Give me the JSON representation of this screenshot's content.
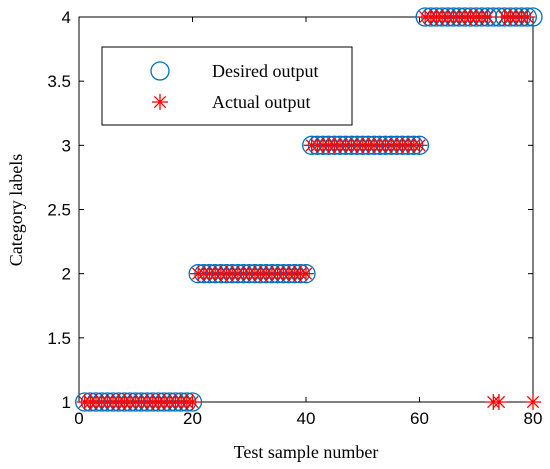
{
  "chart_data": {
    "type": "scatter",
    "title": "",
    "xlabel": "Test sample number",
    "ylabel": "Category labels",
    "xlim": [
      0,
      80
    ],
    "ylim": [
      1,
      4
    ],
    "xticks": [
      0,
      20,
      40,
      60,
      80
    ],
    "xtick_labels": [
      "0",
      "20",
      "40",
      "60",
      "80"
    ],
    "yticks": [
      1,
      1.5,
      2,
      2.5,
      3,
      3.5,
      4
    ],
    "ytick_labels": [
      "1",
      "1.5",
      "2",
      "2.5",
      "3",
      "3.5",
      "4"
    ],
    "grid": false,
    "legend_position": "upper-left",
    "series": [
      {
        "name": "Desired output",
        "marker": "circle",
        "color": "#0072BD",
        "x": [
          1,
          2,
          3,
          4,
          5,
          6,
          7,
          8,
          9,
          10,
          11,
          12,
          13,
          14,
          15,
          16,
          17,
          18,
          19,
          20,
          21,
          22,
          23,
          24,
          25,
          26,
          27,
          28,
          29,
          30,
          31,
          32,
          33,
          34,
          35,
          36,
          37,
          38,
          39,
          40,
          41,
          42,
          43,
          44,
          45,
          46,
          47,
          48,
          49,
          50,
          51,
          52,
          53,
          54,
          55,
          56,
          57,
          58,
          59,
          60,
          61,
          62,
          63,
          64,
          65,
          66,
          67,
          68,
          69,
          70,
          71,
          72,
          73,
          74,
          75,
          76,
          77,
          78,
          79,
          80
        ],
        "y": [
          1,
          1,
          1,
          1,
          1,
          1,
          1,
          1,
          1,
          1,
          1,
          1,
          1,
          1,
          1,
          1,
          1,
          1,
          1,
          1,
          2,
          2,
          2,
          2,
          2,
          2,
          2,
          2,
          2,
          2,
          2,
          2,
          2,
          2,
          2,
          2,
          2,
          2,
          2,
          2,
          3,
          3,
          3,
          3,
          3,
          3,
          3,
          3,
          3,
          3,
          3,
          3,
          3,
          3,
          3,
          3,
          3,
          3,
          3,
          3,
          4,
          4,
          4,
          4,
          4,
          4,
          4,
          4,
          4,
          4,
          4,
          4,
          4,
          4,
          4,
          4,
          4,
          4,
          4,
          4
        ]
      },
      {
        "name": "Actual output",
        "marker": "asterisk",
        "color": "#FF0000",
        "x": [
          1,
          2,
          3,
          4,
          5,
          6,
          7,
          8,
          9,
          10,
          11,
          12,
          13,
          14,
          15,
          16,
          17,
          18,
          19,
          20,
          21,
          22,
          23,
          24,
          25,
          26,
          27,
          28,
          29,
          30,
          31,
          32,
          33,
          34,
          35,
          36,
          37,
          38,
          39,
          40,
          41,
          42,
          43,
          44,
          45,
          46,
          47,
          48,
          49,
          50,
          51,
          52,
          53,
          54,
          55,
          56,
          57,
          58,
          59,
          60,
          61,
          62,
          63,
          64,
          65,
          66,
          67,
          68,
          69,
          70,
          71,
          72,
          73,
          74,
          75,
          76,
          77,
          78,
          79,
          80
        ],
        "y": [
          1,
          1,
          1,
          1,
          1,
          1,
          1,
          1,
          1,
          1,
          1,
          1,
          1,
          1,
          1,
          1,
          1,
          1,
          1,
          1,
          2,
          2,
          2,
          2,
          2,
          2,
          2,
          2,
          2,
          2,
          2,
          2,
          2,
          2,
          2,
          2,
          2,
          2,
          2,
          2,
          3,
          3,
          3,
          3,
          3,
          3,
          3,
          3,
          3,
          3,
          3,
          3,
          3,
          3,
          3,
          3,
          3,
          3,
          3,
          3,
          4,
          4,
          4,
          4,
          4,
          4,
          4,
          4,
          4,
          4,
          4,
          4,
          1,
          1,
          4,
          4,
          4,
          4,
          4,
          1
        ]
      }
    ]
  }
}
